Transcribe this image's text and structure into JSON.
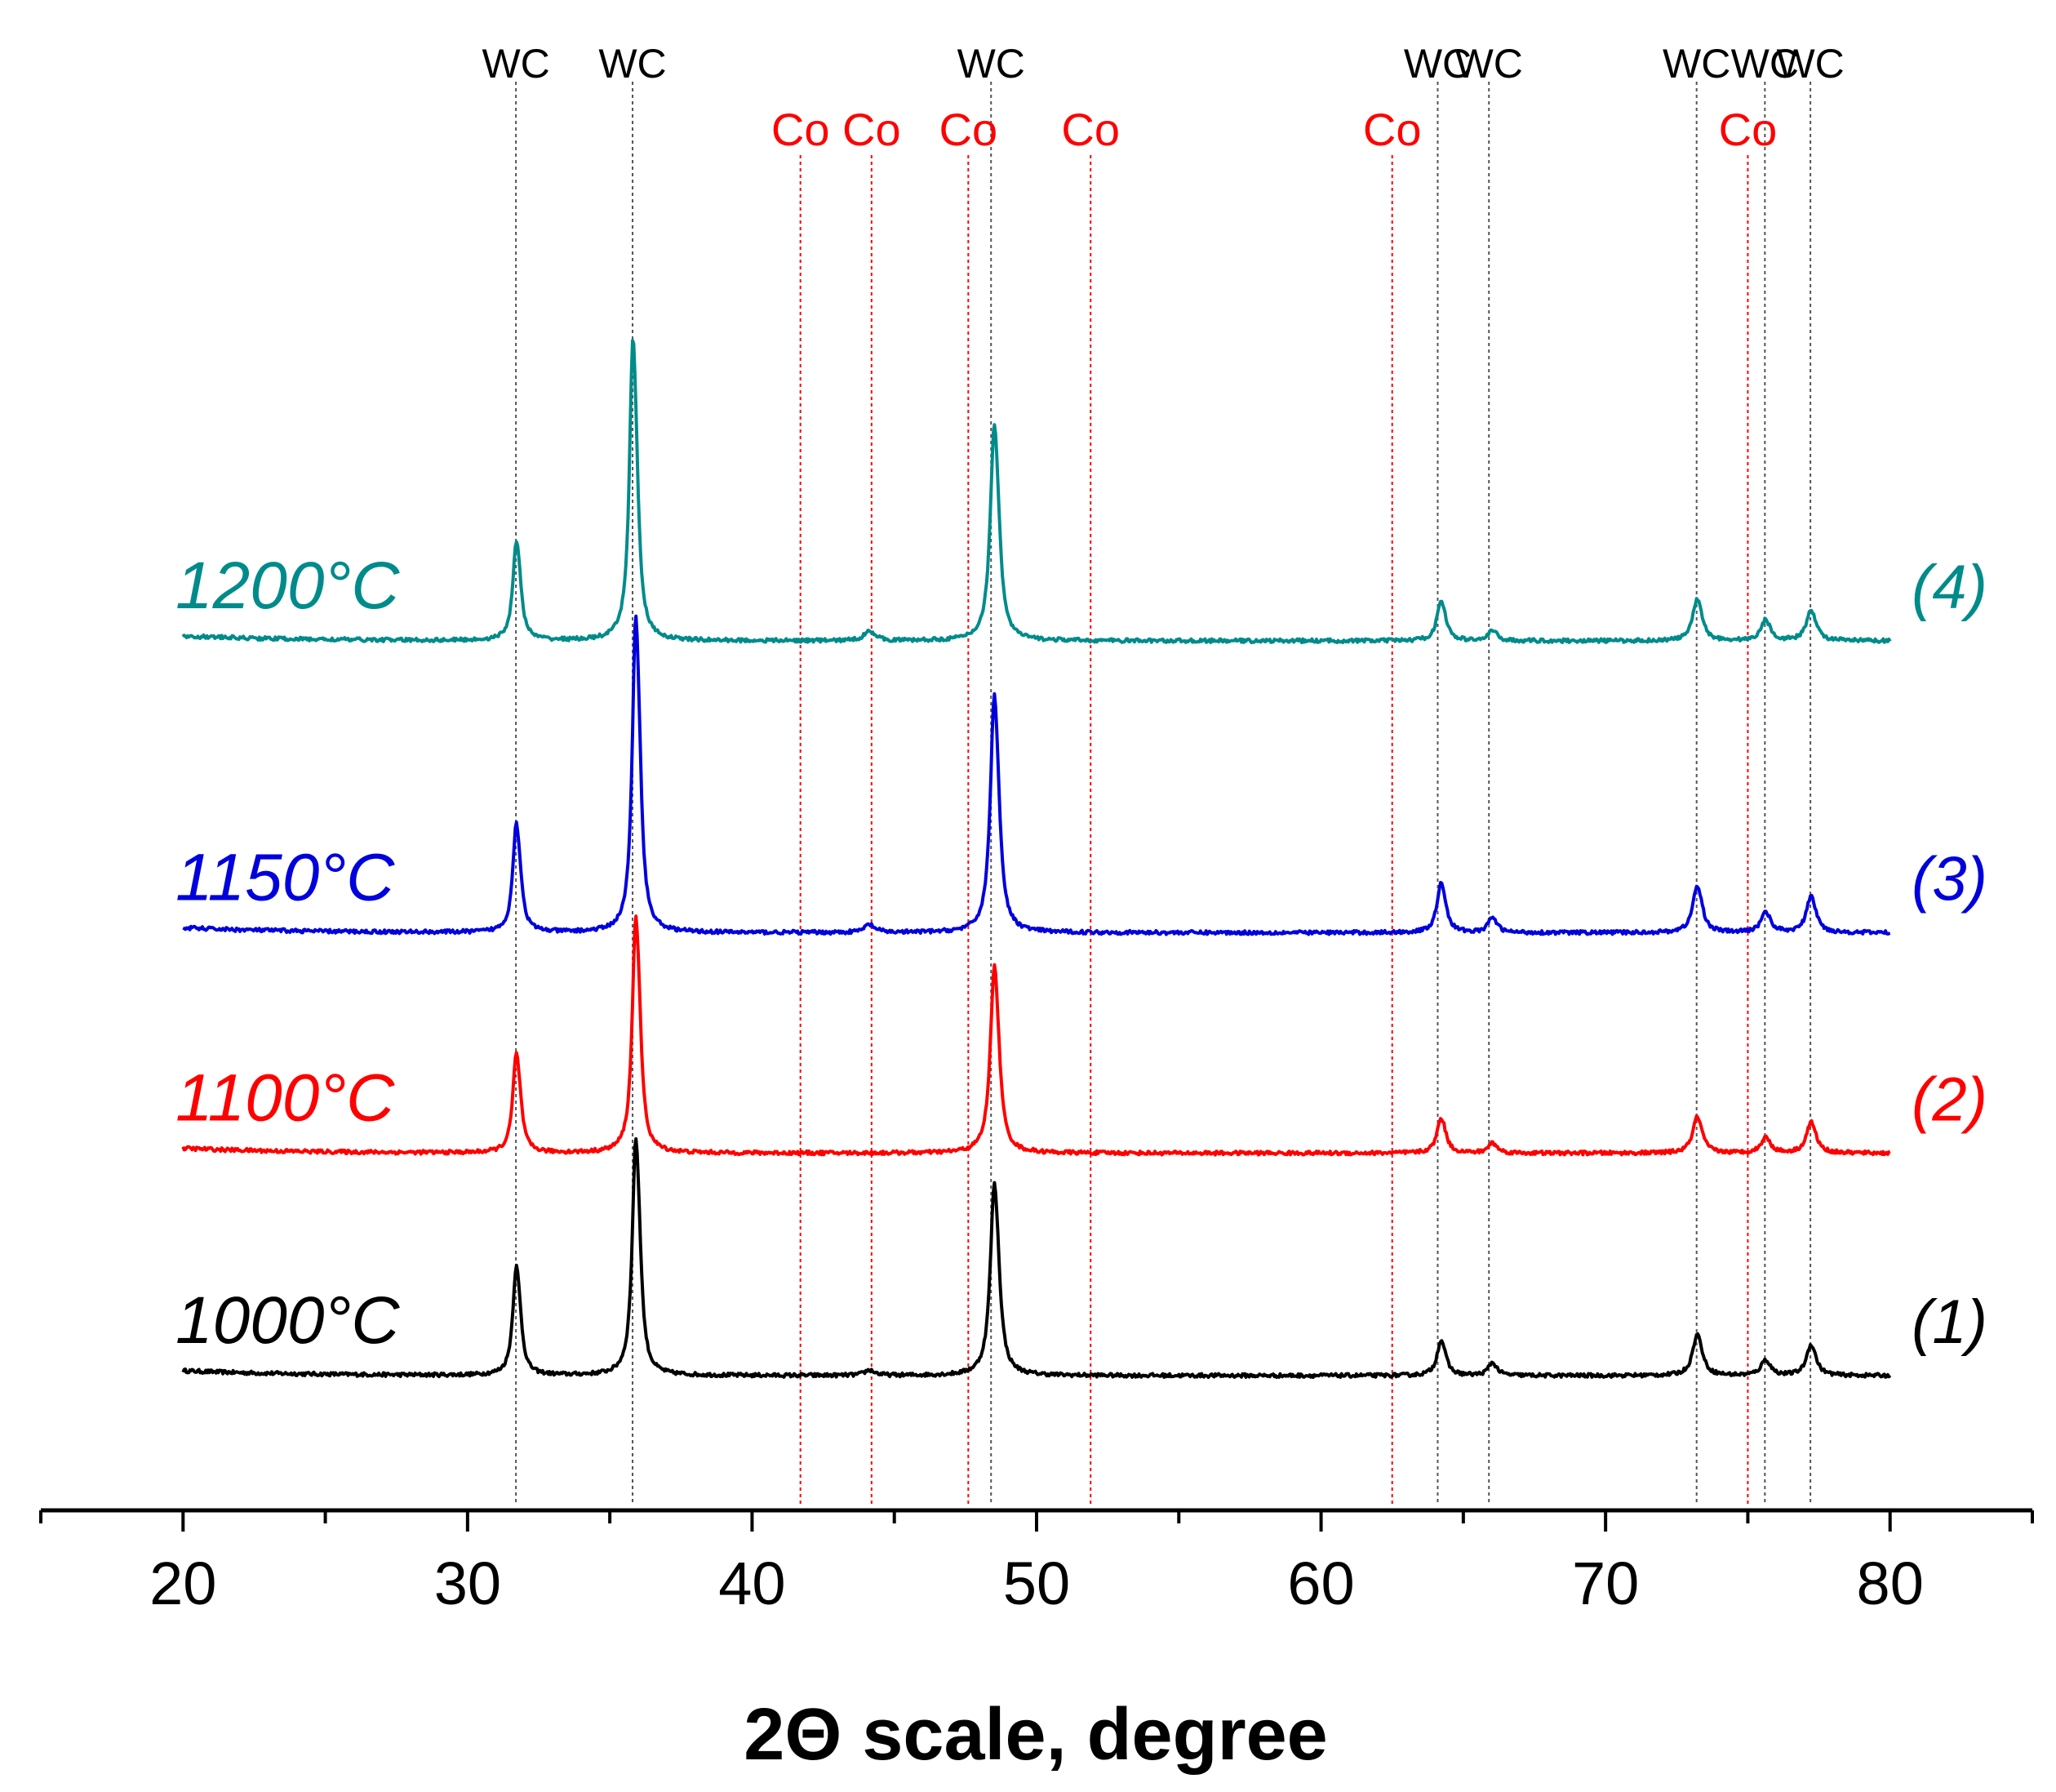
{
  "chart_data": {
    "type": "line",
    "title": "",
    "xlabel": "2Θ scale, degree",
    "ylabel": "",
    "xlim": [
      15,
      85
    ],
    "x_ticks": [
      20,
      30,
      40,
      50,
      60,
      70,
      80
    ],
    "x_tick_labels": [
      "20",
      "30",
      "40",
      "50",
      "60",
      "70",
      "80"
    ],
    "minor_ticks": [
      15,
      25,
      35,
      45,
      55,
      65,
      75,
      85
    ],
    "grid": false,
    "reference_lines": [
      {
        "phase": "WC",
        "position": 31.7,
        "label": "WC",
        "color": "#555555"
      },
      {
        "phase": "WC",
        "position": 35.8,
        "label": "WC",
        "color": "#555555"
      },
      {
        "phase": "WC",
        "position": 48.4,
        "label": "WC",
        "color": "#555555"
      },
      {
        "phase": "WC",
        "position": 64.1,
        "label": "WC",
        "color": "#555555"
      },
      {
        "phase": "WC",
        "position": 65.9,
        "label": "WC",
        "color": "#555555"
      },
      {
        "phase": "WC",
        "position": 73.2,
        "label": "WC",
        "color": "#555555"
      },
      {
        "phase": "WC",
        "position": 75.6,
        "label": "WC",
        "color": "#555555"
      },
      {
        "phase": "WC",
        "position": 77.2,
        "label": "WC",
        "color": "#555555"
      },
      {
        "phase": "Co",
        "position": 41.7,
        "label": "Co",
        "color": "#ff0000"
      },
      {
        "phase": "Co",
        "position": 44.2,
        "label": "Co",
        "color": "#ff0000"
      },
      {
        "phase": "Co",
        "position": 47.6,
        "label": "Co",
        "color": "#ff0000"
      },
      {
        "phase": "Co",
        "position": 51.9,
        "label": "Co",
        "color": "#ff0000"
      },
      {
        "phase": "Co",
        "position": 62.5,
        "label": "Co",
        "color": "#ff0000"
      },
      {
        "phase": "Co",
        "position": 75.0,
        "label": "Co",
        "color": "#ff0000"
      }
    ],
    "x_range": [
      20,
      80
    ],
    "series": [
      {
        "name": "1000°C",
        "number_label": "(1)",
        "color": "#000000",
        "baseline": 0,
        "peaks": [
          {
            "x": 31.7,
            "height": 22,
            "width": 0.14
          },
          {
            "x": 35.9,
            "height": 48,
            "width": 0.14
          },
          {
            "x": 44.1,
            "height": 1,
            "width": 0.2
          },
          {
            "x": 48.5,
            "height": 38,
            "width": 0.16
          },
          {
            "x": 64.2,
            "height": 7,
            "width": 0.16
          },
          {
            "x": 66.0,
            "height": 2.5,
            "width": 0.16
          },
          {
            "x": 73.2,
            "height": 8,
            "width": 0.18
          },
          {
            "x": 75.6,
            "height": 3,
            "width": 0.18
          },
          {
            "x": 77.2,
            "height": 6,
            "width": 0.18
          }
        ]
      },
      {
        "name": "1100°C",
        "number_label": "(2)",
        "color": "#ff0000",
        "baseline": 54.5,
        "peaks": [
          {
            "x": 31.7,
            "height": 20,
            "width": 0.14
          },
          {
            "x": 35.9,
            "height": 48,
            "width": 0.14
          },
          {
            "x": 48.5,
            "height": 37,
            "width": 0.16
          },
          {
            "x": 64.2,
            "height": 7,
            "width": 0.16
          },
          {
            "x": 66.0,
            "height": 2,
            "width": 0.16
          },
          {
            "x": 73.2,
            "height": 7,
            "width": 0.18
          },
          {
            "x": 75.6,
            "height": 3,
            "width": 0.18
          },
          {
            "x": 77.2,
            "height": 6,
            "width": 0.18
          }
        ]
      },
      {
        "name": "1150°C",
        "number_label": "(3)",
        "color": "#0000dd",
        "baseline": 108.5,
        "peaks": [
          {
            "x": 31.7,
            "height": 22,
            "width": 0.14
          },
          {
            "x": 35.9,
            "height": 64,
            "width": 0.14
          },
          {
            "x": 44.1,
            "height": 1.5,
            "width": 0.2
          },
          {
            "x": 48.5,
            "height": 47,
            "width": 0.16
          },
          {
            "x": 64.2,
            "height": 10,
            "width": 0.16
          },
          {
            "x": 66.0,
            "height": 3,
            "width": 0.16
          },
          {
            "x": 73.2,
            "height": 9,
            "width": 0.18
          },
          {
            "x": 75.6,
            "height": 4,
            "width": 0.18
          },
          {
            "x": 77.2,
            "height": 7,
            "width": 0.18
          }
        ]
      },
      {
        "name": "1200°C",
        "number_label": "(4)",
        "color": "#008b8b",
        "baseline": 180,
        "peaks": [
          {
            "x": 31.7,
            "height": 20,
            "width": 0.14
          },
          {
            "x": 35.8,
            "height": 61,
            "width": 0.14
          },
          {
            "x": 44.1,
            "height": 2,
            "width": 0.2
          },
          {
            "x": 48.5,
            "height": 43,
            "width": 0.16
          },
          {
            "x": 64.2,
            "height": 8,
            "width": 0.16
          },
          {
            "x": 66.0,
            "height": 2,
            "width": 0.16
          },
          {
            "x": 73.2,
            "height": 8,
            "width": 0.18
          },
          {
            "x": 75.6,
            "height": 4,
            "width": 0.18
          },
          {
            "x": 77.2,
            "height": 6,
            "width": 0.18
          }
        ]
      }
    ]
  }
}
